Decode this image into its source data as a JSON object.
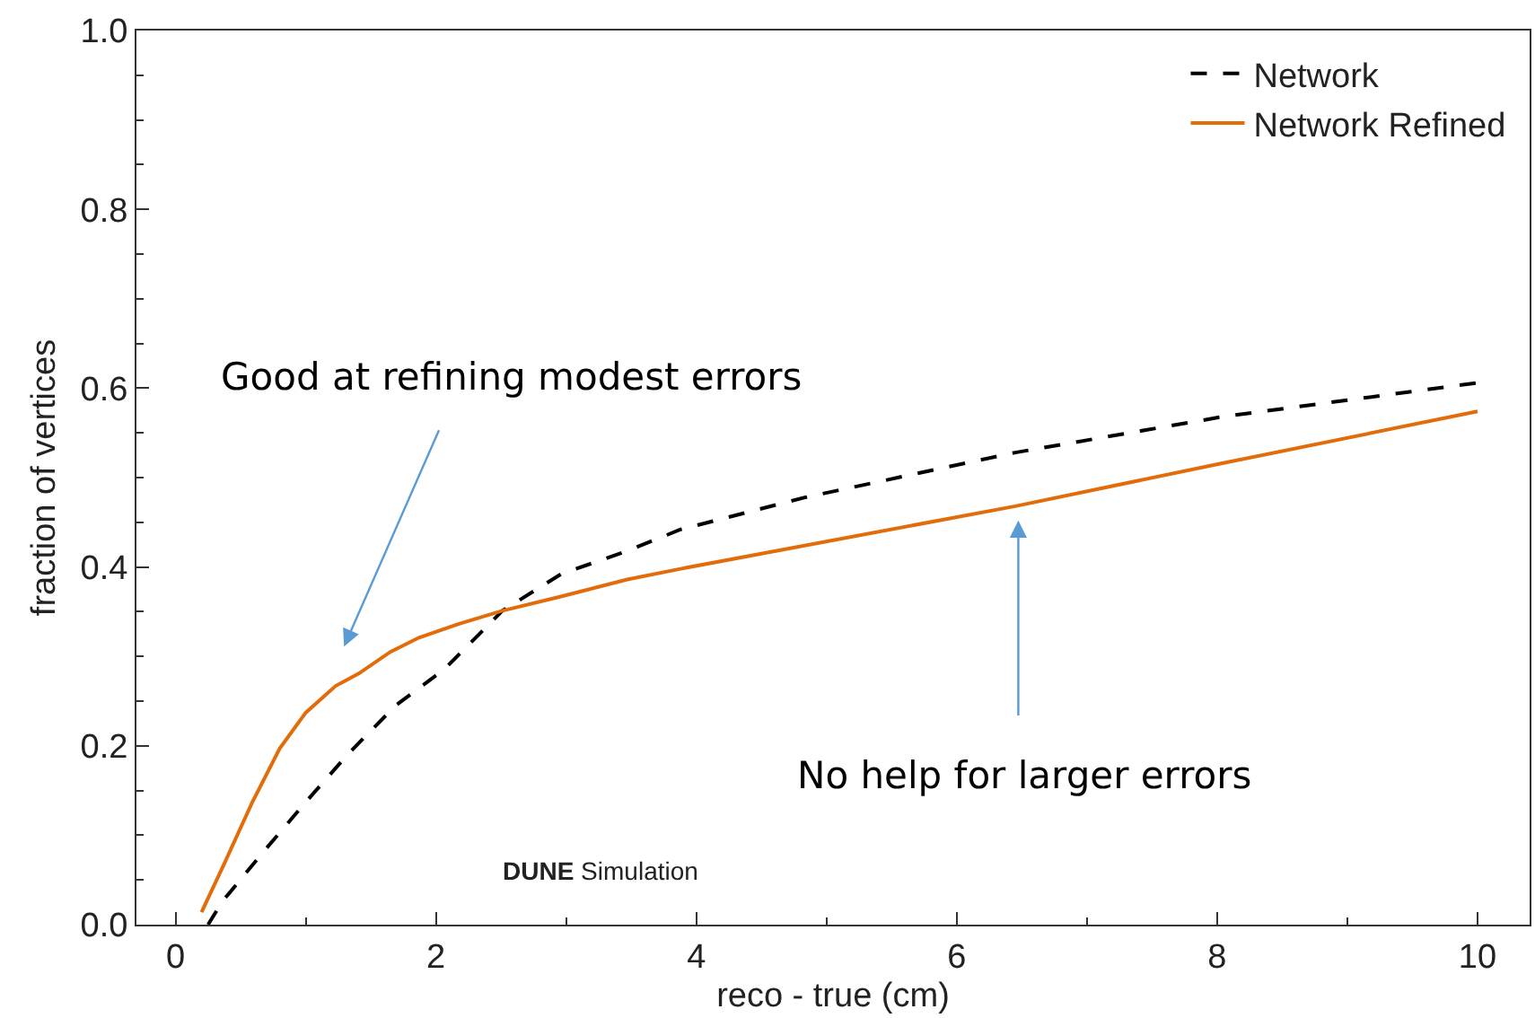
{
  "chart_data": {
    "type": "line",
    "xlabel": "reco - true (cm)",
    "ylabel": "fraction of vertices",
    "xlim": [
      -0.3,
      10.4
    ],
    "ylim": [
      0,
      1
    ],
    "xticks": [
      0,
      2,
      4,
      6,
      8,
      10
    ],
    "yticks": [
      {
        "value": 0,
        "label": "0.0"
      },
      0.2,
      0.4,
      0.6,
      0.8,
      {
        "value": 1,
        "label": "1.0"
      }
    ],
    "legend": "top right",
    "marker": "none",
    "series": [
      {
        "name": "Network",
        "color": "#000000",
        "line_style": "dashed",
        "x": [
          0.25,
          0.36,
          0.69,
          1.0,
          1.32,
          1.69,
          2.06,
          2.51,
          2.96,
          3.47,
          3.88,
          4.84,
          6.45,
          8.04,
          10.0
        ],
        "values": [
          0.0,
          0.026,
          0.084,
          0.137,
          0.19,
          0.245,
          0.285,
          0.351,
          0.392,
          0.418,
          0.442,
          0.478,
          0.528,
          0.568,
          0.606
        ]
      },
      {
        "name": "Network Refined",
        "color": "#e36c0a",
        "line_style": "solid",
        "x": [
          0.2,
          0.38,
          0.59,
          0.8,
          1.0,
          1.23,
          1.41,
          1.65,
          1.87,
          2.19,
          2.51,
          2.96,
          3.47,
          3.88,
          6.45,
          8.04,
          10.0
        ],
        "values": [
          0.014,
          0.07,
          0.137,
          0.197,
          0.237,
          0.267,
          0.281,
          0.305,
          0.321,
          0.337,
          0.351,
          0.367,
          0.386,
          0.398,
          0.468,
          0.516,
          0.574
        ]
      }
    ],
    "annotations": [
      "Good at refining modest errors",
      "No help for larger errors",
      "DUNE Simulation"
    ]
  }
}
